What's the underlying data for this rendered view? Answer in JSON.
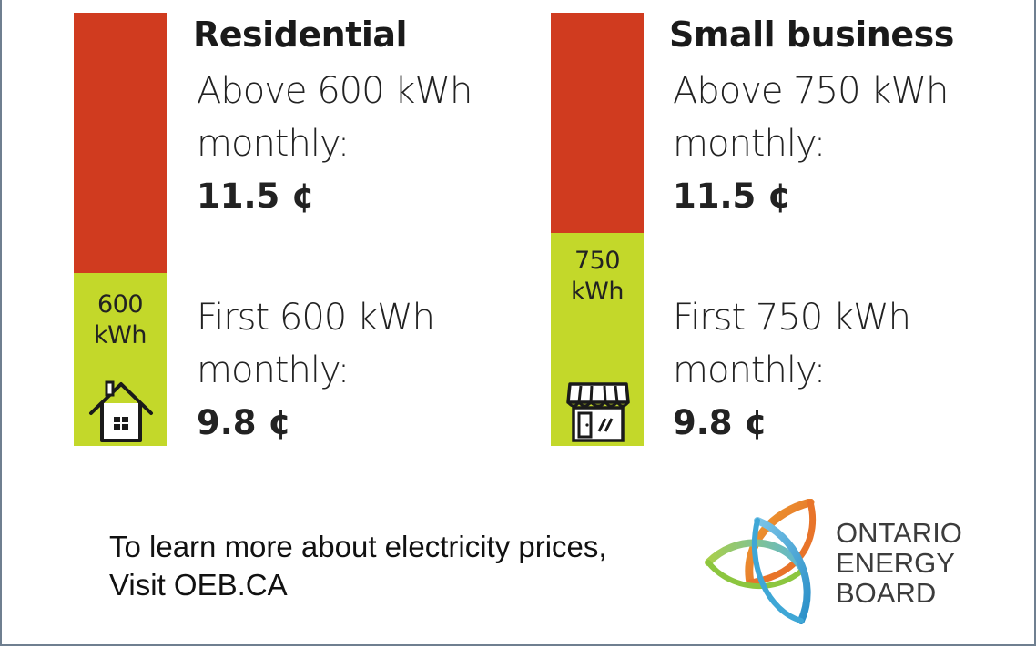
{
  "residential": {
    "heading": "Residential",
    "upper_line1": "Above 600 kWh",
    "upper_line2": "monthly:",
    "upper_price": "11.5 ¢",
    "threshold_value": "600",
    "threshold_unit": "kWh",
    "lower_line1": "First 600 kWh",
    "lower_line2": "monthly:",
    "lower_price": "9.8 ¢",
    "icon": "house-icon"
  },
  "small_business": {
    "heading": "Small business",
    "upper_line1": "Above 750 kWh",
    "upper_line2": "monthly:",
    "upper_price": "11.5 ¢",
    "threshold_value": "750",
    "threshold_unit": "kWh",
    "lower_line1": "First 750 kWh",
    "lower_line2": "monthly:",
    "lower_price": "9.8 ¢",
    "icon": "storefront-icon"
  },
  "footer": {
    "line1": "To learn more about electricity prices,",
    "line2": "Visit OEB.CA"
  },
  "logo": {
    "line1": "ONTARIO",
    "line2": "ENERGY",
    "line3": "BOARD"
  },
  "colors": {
    "upper_tier": "#d03b1f",
    "lower_tier": "#c3d82a",
    "logo_orange": "#e8742a",
    "logo_blue": "#3fa7d6",
    "logo_green": "#8cc63f"
  }
}
